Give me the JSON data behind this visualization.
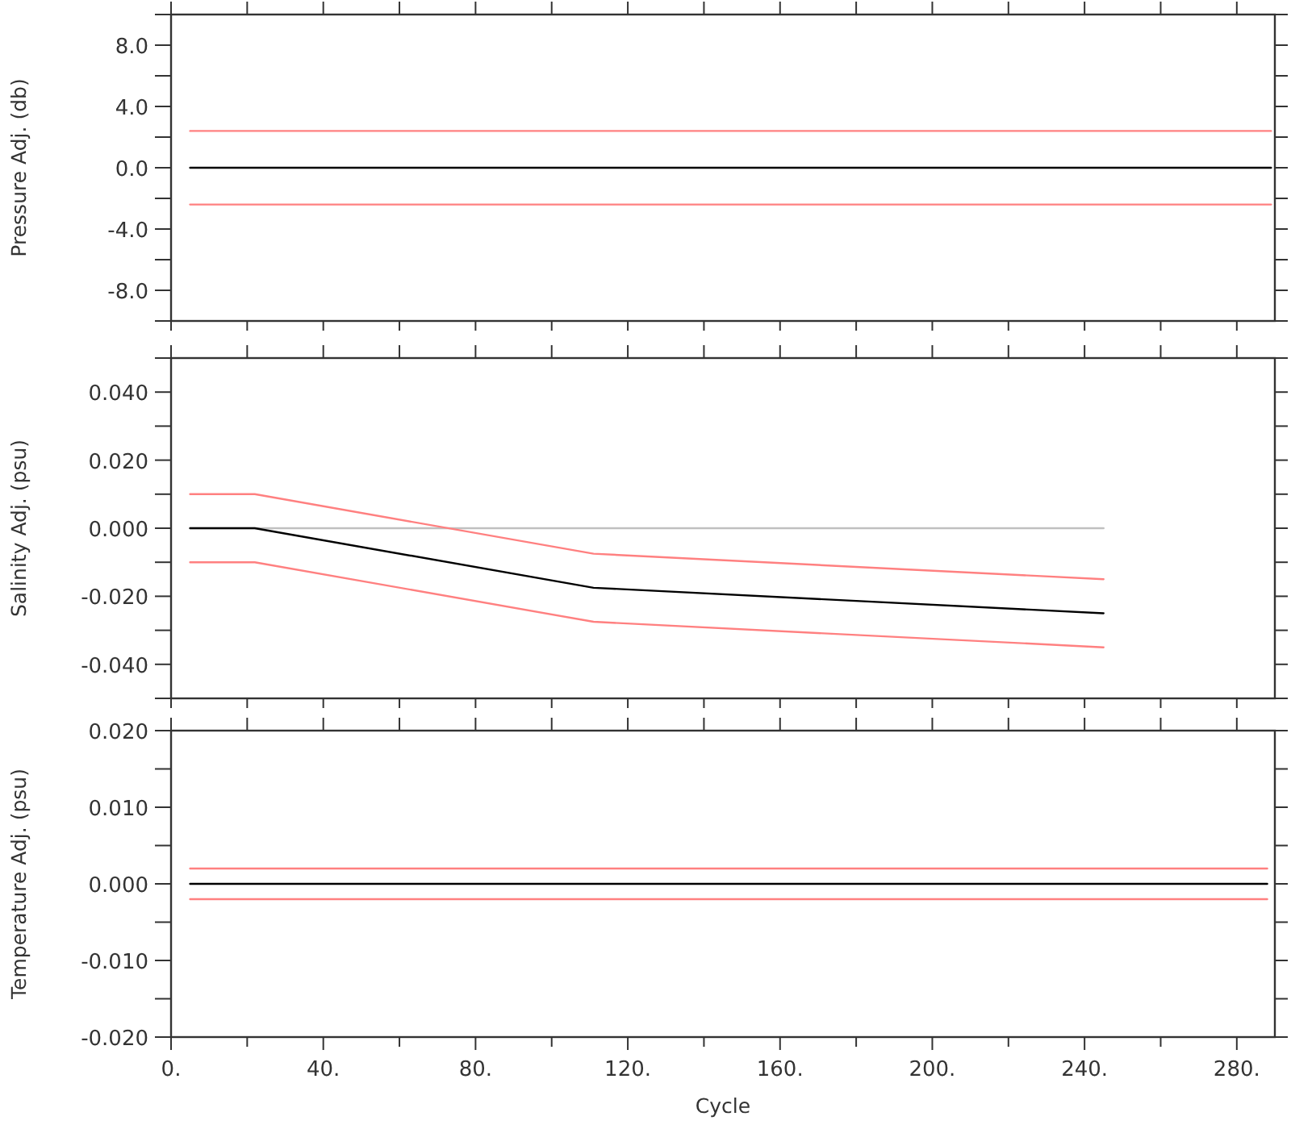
{
  "chart_data": [
    {
      "type": "line",
      "ylabel": "Pressure Adj. (db)",
      "xlim": [
        0,
        290
      ],
      "ylim": [
        -10,
        10
      ],
      "tick_labels": "y",
      "xticks": [
        {
          "value": 0,
          "label": null
        },
        {
          "value": 20,
          "label": null
        },
        {
          "value": 40,
          "label": null
        },
        {
          "value": 60,
          "label": null
        },
        {
          "value": 80,
          "label": null
        },
        {
          "value": 100,
          "label": null
        },
        {
          "value": 120,
          "label": null
        },
        {
          "value": 140,
          "label": null
        },
        {
          "value": 160,
          "label": null
        },
        {
          "value": 180,
          "label": null
        },
        {
          "value": 200,
          "label": null
        },
        {
          "value": 220,
          "label": null
        },
        {
          "value": 240,
          "label": null
        },
        {
          "value": 260,
          "label": null
        },
        {
          "value": 280,
          "label": null
        }
      ],
      "yticks": [
        {
          "value": -10,
          "label": null
        },
        {
          "value": -8,
          "label": "-8.0"
        },
        {
          "value": -6,
          "label": null
        },
        {
          "value": -4,
          "label": "-4.0"
        },
        {
          "value": -2,
          "label": null
        },
        {
          "value": 0,
          "label": "0.0"
        },
        {
          "value": 2,
          "label": null
        },
        {
          "value": 4,
          "label": "4.0"
        },
        {
          "value": 6,
          "label": null
        },
        {
          "value": 8,
          "label": "8.0"
        },
        {
          "value": 10,
          "label": null
        }
      ],
      "series": [
        {
          "color": "#ff8080",
          "x": [
            5,
            289
          ],
          "values": [
            2.4,
            2.4
          ]
        },
        {
          "color": "#000000",
          "x": [
            5,
            289
          ],
          "values": [
            0,
            0
          ]
        },
        {
          "color": "#ff8080",
          "x": [
            5,
            289
          ],
          "values": [
            -2.4,
            -2.4
          ]
        }
      ]
    },
    {
      "type": "line",
      "ylabel": "Salinity Adj. (psu)",
      "xlim": [
        0,
        290
      ],
      "ylim": [
        -0.05,
        0.05
      ],
      "tick_labels": "y",
      "xticks": [
        {
          "value": 0,
          "label": null
        },
        {
          "value": 20,
          "label": null
        },
        {
          "value": 40,
          "label": null
        },
        {
          "value": 60,
          "label": null
        },
        {
          "value": 80,
          "label": null
        },
        {
          "value": 100,
          "label": null
        },
        {
          "value": 120,
          "label": null
        },
        {
          "value": 140,
          "label": null
        },
        {
          "value": 160,
          "label": null
        },
        {
          "value": 180,
          "label": null
        },
        {
          "value": 200,
          "label": null
        },
        {
          "value": 220,
          "label": null
        },
        {
          "value": 240,
          "label": null
        },
        {
          "value": 260,
          "label": null
        },
        {
          "value": 280,
          "label": null
        }
      ],
      "yticks": [
        {
          "value": -0.05,
          "label": null
        },
        {
          "value": -0.04,
          "label": "-0.040"
        },
        {
          "value": -0.03,
          "label": null
        },
        {
          "value": -0.02,
          "label": "-0.020"
        },
        {
          "value": -0.01,
          "label": null
        },
        {
          "value": 0,
          "label": "0.000"
        },
        {
          "value": 0.01,
          "label": null
        },
        {
          "value": 0.02,
          "label": "0.020"
        },
        {
          "value": 0.03,
          "label": null
        },
        {
          "value": 0.04,
          "label": "0.040"
        },
        {
          "value": 0.05,
          "label": null
        }
      ],
      "series": [
        {
          "color": "#c0c0c0",
          "x": [
            5,
            245
          ],
          "values": [
            0,
            0
          ]
        },
        {
          "color": "#ff8080",
          "x": [
            5,
            22,
            111,
            245
          ],
          "values": [
            0.01,
            0.01,
            -0.0075,
            -0.015
          ]
        },
        {
          "color": "#000000",
          "x": [
            5,
            22,
            111,
            245
          ],
          "values": [
            0,
            0,
            -0.0175,
            -0.025
          ]
        },
        {
          "color": "#ff8080",
          "x": [
            5,
            22,
            111,
            245
          ],
          "values": [
            -0.01,
            -0.01,
            -0.0275,
            -0.035
          ]
        }
      ]
    },
    {
      "type": "line",
      "ylabel": "Temperature Adj. (psu)",
      "xlabel": "Cycle",
      "xlim": [
        0,
        290
      ],
      "ylim": [
        -0.02,
        0.02
      ],
      "xticks": [
        {
          "value": 0,
          "label": "0."
        },
        {
          "value": 20,
          "label": null
        },
        {
          "value": 40,
          "label": "40."
        },
        {
          "value": 60,
          "label": null
        },
        {
          "value": 80,
          "label": "80."
        },
        {
          "value": 100,
          "label": null
        },
        {
          "value": 120,
          "label": "120."
        },
        {
          "value": 140,
          "label": null
        },
        {
          "value": 160,
          "label": "160."
        },
        {
          "value": 180,
          "label": null
        },
        {
          "value": 200,
          "label": "200."
        },
        {
          "value": 220,
          "label": null
        },
        {
          "value": 240,
          "label": "240."
        },
        {
          "value": 260,
          "label": null
        },
        {
          "value": 280,
          "label": "280."
        }
      ],
      "yticks": [
        {
          "value": -0.02,
          "label": "-0.020"
        },
        {
          "value": -0.015,
          "label": null
        },
        {
          "value": -0.01,
          "label": "-0.010"
        },
        {
          "value": -0.005,
          "label": null
        },
        {
          "value": 0,
          "label": "0.000"
        },
        {
          "value": 0.005,
          "label": null
        },
        {
          "value": 0.01,
          "label": "0.010"
        },
        {
          "value": 0.015,
          "label": null
        },
        {
          "value": 0.02,
          "label": "0.020"
        }
      ],
      "series": [
        {
          "color": "#ff8080",
          "x": [
            5,
            288
          ],
          "values": [
            0.002,
            0.002
          ]
        },
        {
          "color": "#000000",
          "x": [
            5,
            288
          ],
          "values": [
            0,
            0
          ]
        },
        {
          "color": "#ff8080",
          "x": [
            5,
            288
          ],
          "values": [
            -0.002,
            -0.002
          ]
        }
      ]
    }
  ]
}
